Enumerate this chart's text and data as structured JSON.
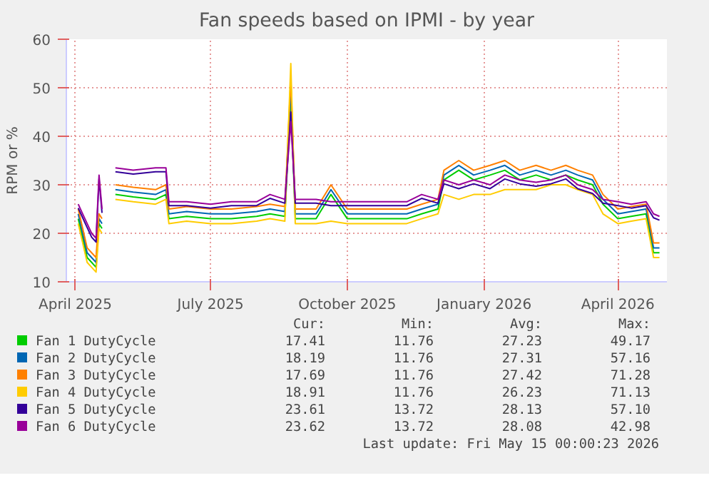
{
  "chart_data": {
    "type": "line",
    "title": "Fan speeds based on IPMI - by year",
    "ylabel": "RPM or %",
    "x": [
      "2025-04-03",
      "2025-04-06",
      "2025-04-09",
      "2025-04-12",
      "2025-04-15",
      "2025-04-17",
      "2025-04-19",
      "2025-04-23",
      "2025-04-28",
      "2025-05-10",
      "2025-05-25",
      "2025-06-01",
      "2025-06-03",
      "2025-06-15",
      "2025-07-01",
      "2025-07-15",
      "2025-08-01",
      "2025-08-10",
      "2025-08-20",
      "2025-08-24",
      "2025-08-27",
      "2025-09-10",
      "2025-09-20",
      "2025-10-01",
      "2025-10-15",
      "2025-11-01",
      "2025-11-10",
      "2025-11-20",
      "2025-12-01",
      "2025-12-05",
      "2025-12-15",
      "2025-12-25",
      "2026-01-05",
      "2026-01-15",
      "2026-01-25",
      "2026-02-05",
      "2026-02-15",
      "2026-02-25",
      "2026-03-05",
      "2026-03-15",
      "2026-03-22",
      "2026-04-01",
      "2026-04-10",
      "2026-04-20",
      "2026-04-25",
      "2026-04-29"
    ],
    "series": [
      {
        "name": "Fan 1 DutyCycle",
        "color": "#00cc00",
        "values": [
          23,
          19,
          15,
          14,
          13,
          22,
          21,
          null,
          28,
          27.5,
          27,
          28,
          23,
          23.5,
          23,
          23,
          23.5,
          24,
          23.5,
          48,
          23,
          23,
          28,
          23,
          23,
          23,
          23,
          24,
          25,
          31,
          33,
          31,
          32,
          33,
          31,
          32,
          31,
          32,
          31,
          30,
          26,
          23,
          23.5,
          24,
          16,
          16
        ]
      },
      {
        "name": "Fan 2 DutyCycle",
        "color": "#0066b3",
        "values": [
          24,
          20,
          16,
          15,
          14,
          23,
          22,
          null,
          29,
          28.5,
          28,
          29,
          24,
          24.5,
          24,
          24,
          24.5,
          25,
          24.5,
          50,
          24,
          24,
          29,
          24,
          24,
          24,
          24,
          25,
          26,
          32,
          34,
          32,
          33,
          34,
          32,
          33,
          32,
          33,
          32,
          31,
          27,
          24,
          24.5,
          25,
          17,
          17
        ]
      },
      {
        "name": "Fan 3 DutyCycle",
        "color": "#ff8000",
        "values": [
          25,
          21,
          17,
          16,
          15,
          24,
          23,
          null,
          30,
          29.5,
          29,
          30,
          25,
          25.5,
          25,
          25,
          25.5,
          26,
          25.5,
          52,
          25,
          25,
          30,
          25,
          25,
          25,
          25,
          26,
          27,
          33,
          35,
          33,
          34,
          35,
          33,
          34,
          33,
          34,
          33,
          32,
          28,
          25,
          25.5,
          26,
          18,
          18
        ]
      },
      {
        "name": "Fan 4 DutyCycle",
        "color": "#ffcc00",
        "values": [
          22,
          18,
          14,
          13,
          12,
          21,
          20,
          null,
          27,
          26.5,
          26,
          27,
          22,
          22.5,
          22,
          22,
          22.5,
          23,
          22.5,
          55,
          22,
          22,
          22.5,
          22,
          22,
          22,
          22,
          23,
          24,
          28,
          27,
          28,
          28,
          29,
          29,
          29,
          30,
          30,
          29,
          28,
          24,
          22,
          22.5,
          23,
          15,
          15
        ]
      },
      {
        "name": "Fan 5 DutyCycle",
        "color": "#330099",
        "values": [
          25.2,
          23.2,
          21.2,
          19.2,
          18.2,
          31.2,
          24.2,
          null,
          32.7,
          32.2,
          32.7,
          32.7,
          25.7,
          25.7,
          25.2,
          25.7,
          25.7,
          27.2,
          26.2,
          45,
          26.2,
          26.2,
          25.7,
          25.7,
          25.7,
          25.7,
          25.7,
          27.2,
          26.2,
          30.2,
          29.2,
          30.2,
          29.2,
          31.2,
          30.2,
          29.7,
          30.2,
          31.2,
          29.2,
          28.2,
          26.2,
          25.7,
          25.2,
          25.7,
          23.2,
          22.7
        ]
      },
      {
        "name": "Fan 6 DutyCycle",
        "color": "#990099",
        "values": [
          26,
          24,
          22,
          20,
          19,
          32,
          25,
          null,
          33.5,
          33,
          33.5,
          33.5,
          26.5,
          26.5,
          26,
          26.5,
          26.5,
          28,
          27,
          43,
          27,
          27,
          26.5,
          26.5,
          26.5,
          26.5,
          26.5,
          28,
          27,
          31,
          30,
          31,
          30,
          32,
          31,
          30.5,
          31,
          32,
          30,
          29,
          27,
          26.5,
          26,
          26.5,
          24,
          23.5
        ]
      }
    ],
    "xlim": [
      "2025-03-26",
      "2026-05-04"
    ],
    "xticks": [
      {
        "value": "2025-04-01",
        "label": "April 2025"
      },
      {
        "value": "2025-07-01",
        "label": "July 2025"
      },
      {
        "value": "2025-10-01",
        "label": "October 2025"
      },
      {
        "value": "2026-01-01",
        "label": "January 2026"
      },
      {
        "value": "2026-04-01",
        "label": "April 2026"
      }
    ],
    "ylim": [
      10,
      60
    ],
    "yticks": [
      10,
      20,
      30,
      40,
      50,
      60
    ],
    "grid": true,
    "legend": "bottom",
    "annotations": [
      "Cur:",
      "Min:",
      "Avg:",
      "Max:",
      "17.41",
      "11.76",
      "27.23",
      "49.17",
      "18.19",
      "11.76",
      "27.31",
      "57.16",
      "17.69",
      "11.76",
      "27.42",
      "71.28",
      "18.91",
      "11.76",
      "26.23",
      "71.13",
      "23.61",
      "13.72",
      "28.13",
      "57.10",
      "23.62",
      "13.72",
      "28.08",
      "42.98",
      "Last update: Fri May 15 00:00:23 2026"
    ]
  }
}
